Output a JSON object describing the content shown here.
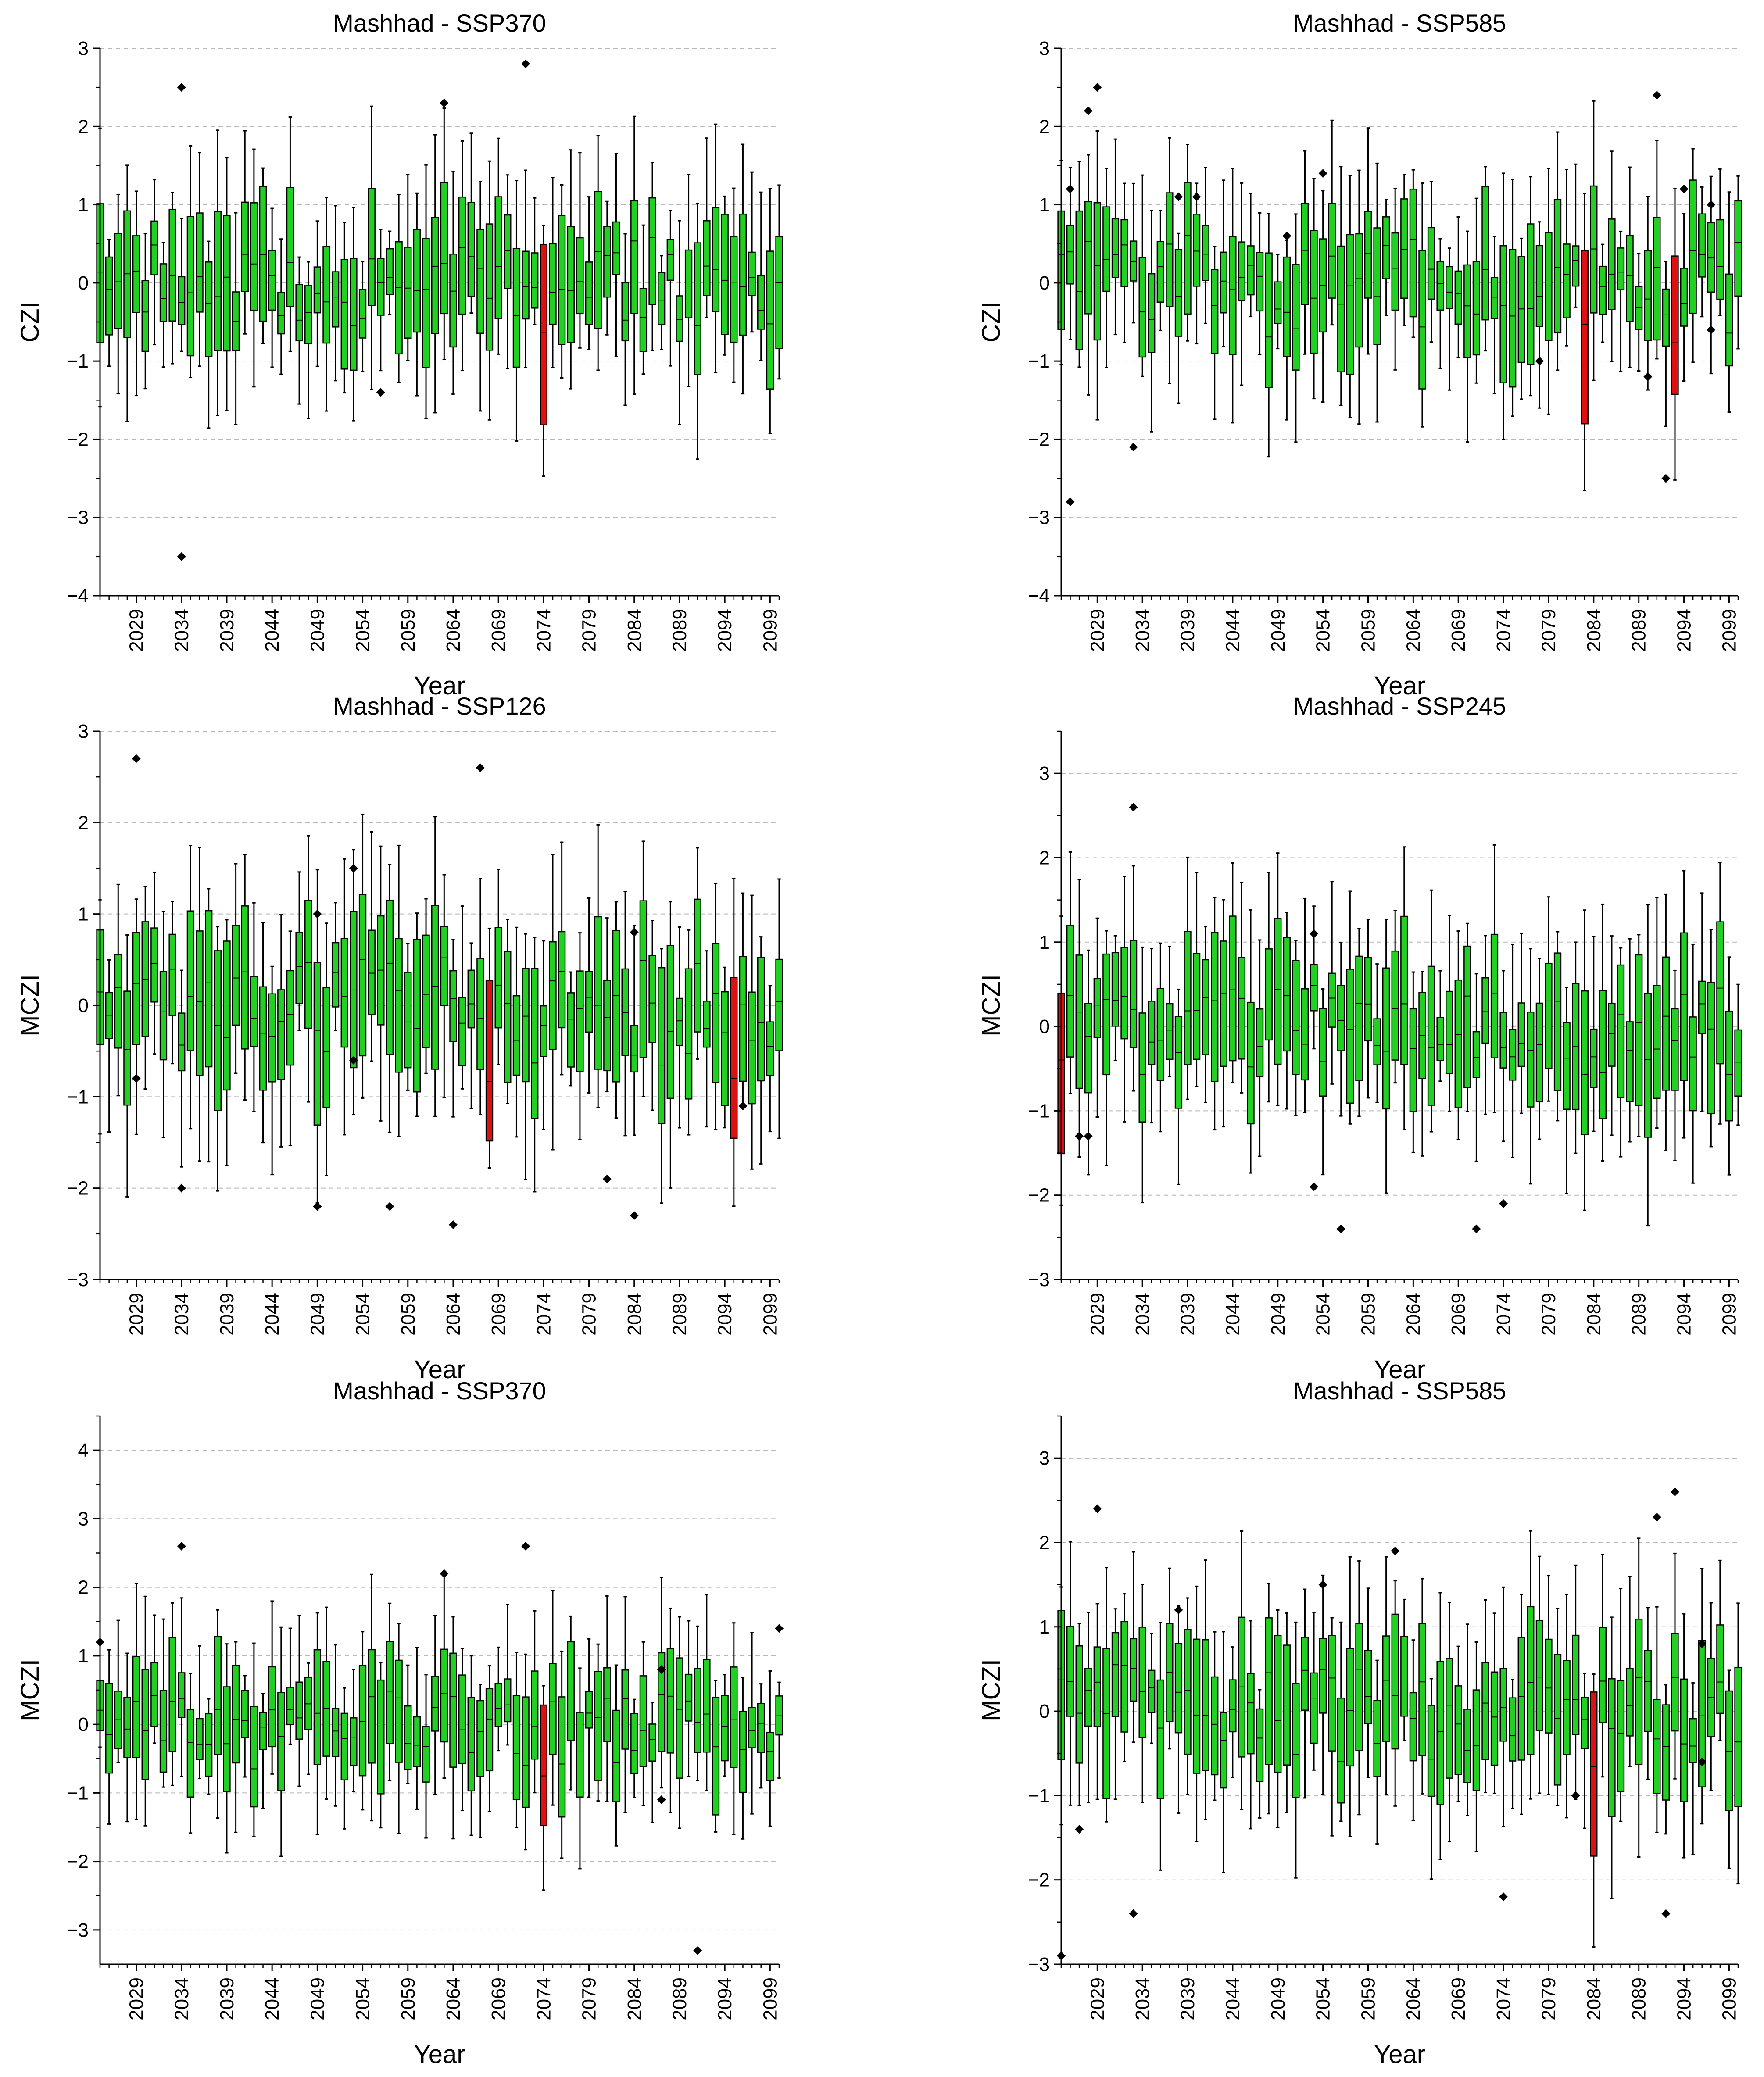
{
  "figure": {
    "colors": {
      "normal": "#22d022",
      "highlight": "#dd1111",
      "outlier": "#000000",
      "grid": "#b8b8b8"
    }
  },
  "chart_data": [
    {
      "type": "box",
      "title": "Mashhad - SSP370",
      "xlabel": "Year",
      "ylabel": "CZI",
      "ylim": [
        -4,
        3
      ],
      "yticks": [
        -4,
        -3,
        -2,
        -1,
        0,
        1,
        2,
        3
      ],
      "xlim": [
        2025,
        2100
      ],
      "xticks": [
        2029,
        2034,
        2039,
        2044,
        2049,
        2054,
        2059,
        2064,
        2069,
        2074,
        2079,
        2084,
        2089,
        2094,
        2099
      ],
      "grid": "horizontal dashed",
      "highlight_years": [
        2074
      ],
      "outliers": [
        [
          2034,
          2.5
        ],
        [
          2034,
          -3.5
        ],
        [
          2056,
          -1.4
        ],
        [
          2063,
          2.3
        ],
        [
          2072,
          2.8
        ]
      ]
    },
    {
      "type": "box",
      "title": "Mashhad - SSP585",
      "xlabel": "Year",
      "ylabel": "CZI",
      "ylim": [
        -4,
        3
      ],
      "yticks": [
        -4,
        -3,
        -2,
        -1,
        0,
        1,
        2,
        3
      ],
      "xlim": [
        2025,
        2100
      ],
      "xticks": [
        2029,
        2034,
        2039,
        2044,
        2049,
        2054,
        2059,
        2064,
        2069,
        2074,
        2079,
        2084,
        2089,
        2094,
        2099
      ],
      "grid": "horizontal dashed",
      "highlight_years": [
        2083,
        2093
      ],
      "outliers": [
        [
          2026,
          1.2
        ],
        [
          2026,
          -2.8
        ],
        [
          2028,
          2.2
        ],
        [
          2029,
          2.5
        ],
        [
          2033,
          -2.1
        ],
        [
          2038,
          1.1
        ],
        [
          2040,
          1.1
        ],
        [
          2050,
          0.6
        ],
        [
          2054,
          1.4
        ],
        [
          2078,
          -1.0
        ],
        [
          2091,
          2.4
        ],
        [
          2092,
          -2.5
        ],
        [
          2090,
          -1.2
        ],
        [
          2094,
          1.2
        ],
        [
          2097,
          1.0
        ],
        [
          2097,
          -0.6
        ]
      ]
    },
    {
      "type": "box",
      "title": "Mashhad - SSP126",
      "xlabel": "Year",
      "ylabel": "MCZI",
      "ylim": [
        -3,
        3
      ],
      "yticks": [
        -3,
        -2,
        -1,
        0,
        1,
        2,
        3
      ],
      "xlim": [
        2025,
        2100
      ],
      "xticks": [
        2029,
        2034,
        2039,
        2044,
        2049,
        2054,
        2059,
        2064,
        2069,
        2074,
        2079,
        2084,
        2089,
        2094,
        2099
      ],
      "grid": "horizontal dashed",
      "highlight_years": [
        2068,
        2095
      ],
      "outliers": [
        [
          2029,
          2.7
        ],
        [
          2029,
          -0.8
        ],
        [
          2034,
          -2.0
        ],
        [
          2049,
          1.0
        ],
        [
          2049,
          -2.2
        ],
        [
          2053,
          1.5
        ],
        [
          2053,
          -0.6
        ],
        [
          2057,
          -2.2
        ],
        [
          2064,
          -2.4
        ],
        [
          2067,
          2.6
        ],
        [
          2081,
          -1.9
        ],
        [
          2084,
          0.8
        ],
        [
          2084,
          -2.3
        ],
        [
          2096,
          -1.1
        ]
      ]
    },
    {
      "type": "box",
      "title": "Mashhad - SSP245",
      "xlabel": "Year",
      "ylabel": "MCZI",
      "ylim": [
        -3,
        3.5
      ],
      "yticks": [
        -3,
        -2,
        -1,
        0,
        1,
        2,
        3
      ],
      "xlim": [
        2025,
        2100
      ],
      "xticks": [
        2029,
        2034,
        2039,
        2044,
        2049,
        2054,
        2059,
        2064,
        2069,
        2074,
        2079,
        2084,
        2089,
        2094,
        2099
      ],
      "grid": "horizontal dashed",
      "highlight_years": [
        2025
      ],
      "outliers": [
        [
          2027,
          -1.3
        ],
        [
          2028,
          -1.3
        ],
        [
          2033,
          2.6
        ],
        [
          2053,
          1.1
        ],
        [
          2053,
          -1.9
        ],
        [
          2056,
          -2.4
        ],
        [
          2071,
          -2.4
        ],
        [
          2074,
          -2.1
        ]
      ]
    },
    {
      "type": "box",
      "title": "Mashhad - SSP370",
      "xlabel": "Year",
      "ylabel": "MCZI",
      "ylim": [
        -3.5,
        4.5
      ],
      "yticks": [
        -3,
        -2,
        -1,
        0,
        1,
        2,
        3,
        4
      ],
      "xlim": [
        2025,
        2100
      ],
      "xticks": [
        2029,
        2034,
        2039,
        2044,
        2049,
        2054,
        2059,
        2064,
        2069,
        2074,
        2079,
        2084,
        2089,
        2094,
        2099
      ],
      "grid": "horizontal dashed",
      "highlight_years": [
        2074
      ],
      "outliers": [
        [
          2025,
          1.2
        ],
        [
          2034,
          2.6
        ],
        [
          2063,
          2.2
        ],
        [
          2072,
          2.6
        ],
        [
          2087,
          0.8
        ],
        [
          2087,
          -1.1
        ],
        [
          2091,
          -3.3
        ],
        [
          2100,
          1.4
        ]
      ]
    },
    {
      "type": "box",
      "title": "Mashhad - SSP585",
      "xlabel": "Year",
      "ylabel": "MCZI",
      "ylim": [
        -3,
        3.5
      ],
      "yticks": [
        -3,
        -2,
        -1,
        0,
        1,
        2,
        3
      ],
      "xlim": [
        2025,
        2100
      ],
      "xticks": [
        2029,
        2034,
        2039,
        2044,
        2049,
        2054,
        2059,
        2064,
        2069,
        2074,
        2079,
        2084,
        2089,
        2094,
        2099
      ],
      "grid": "horizontal dashed",
      "highlight_years": [
        2084
      ],
      "outliers": [
        [
          2025,
          -2.9
        ],
        [
          2027,
          -1.4
        ],
        [
          2029,
          2.4
        ],
        [
          2033,
          -2.4
        ],
        [
          2038,
          1.2
        ],
        [
          2054,
          1.5
        ],
        [
          2062,
          1.9
        ],
        [
          2074,
          -2.2
        ],
        [
          2082,
          -1.0
        ],
        [
          2091,
          2.3
        ],
        [
          2092,
          -2.4
        ],
        [
          2093,
          2.6
        ],
        [
          2096,
          0.8
        ],
        [
          2096,
          -0.6
        ]
      ]
    }
  ]
}
